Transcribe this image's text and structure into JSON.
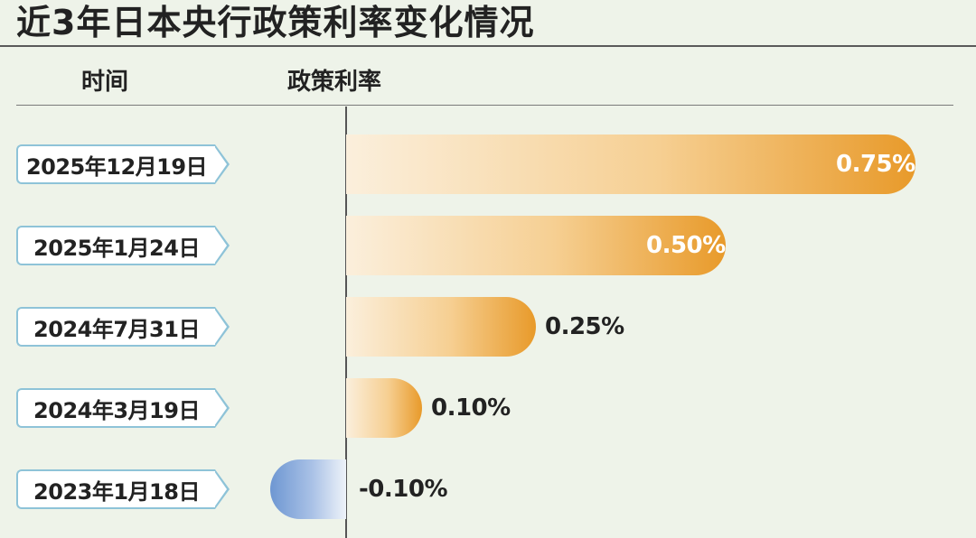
{
  "title": "近3年日本央行政策利率变化情况",
  "headers": {
    "time": "时间",
    "rate": "政策利率"
  },
  "colors": {
    "positive": "#e89a2a",
    "negative": "#6e97d2",
    "label_border": "#8ec3d8"
  },
  "chart_data": {
    "type": "bar",
    "orientation": "horizontal",
    "title": "近3年日本央行政策利率变化情况",
    "xlabel": "政策利率",
    "ylabel": "时间",
    "categories": [
      "2025年12月19日",
      "2025年1月24日",
      "2024年7月31日",
      "2024年3月19日",
      "2023年1月18日"
    ],
    "values": [
      0.75,
      0.5,
      0.25,
      0.1,
      -0.1
    ],
    "value_labels": [
      "0.75%",
      "0.50%",
      "0.25%",
      "0.10%",
      "-0.10%"
    ],
    "unit": "%",
    "grid": false
  }
}
